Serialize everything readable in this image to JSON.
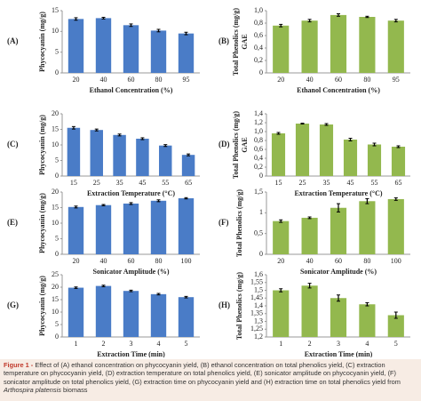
{
  "chart_data": [
    {
      "type": "bar",
      "panel": "(A)",
      "ylabel": "Phycocyanin (mg/g)",
      "xlabel": "Ethanol Concentration (%)",
      "categories": [
        "20",
        "40",
        "60",
        "80",
        "95"
      ],
      "values": [
        13.0,
        13.2,
        11.5,
        10.2,
        9.5
      ],
      "errors": [
        0.3,
        0.2,
        0.3,
        0.3,
        0.3
      ],
      "color": "#4a7cc7",
      "ylim": [
        0,
        15
      ],
      "yticks": [
        0,
        5,
        10,
        15
      ]
    },
    {
      "type": "bar",
      "panel": "(B)",
      "ylabel": "Total Phenolics (mg/g)",
      "ylabel2": "GAE",
      "xlabel": "Ethanol Concentration (%)",
      "categories": [
        "20",
        "40",
        "60",
        "80",
        "95"
      ],
      "values": [
        0.76,
        0.84,
        0.93,
        0.9,
        0.84
      ],
      "errors": [
        0.02,
        0.02,
        0.02,
        0.01,
        0.02
      ],
      "color": "#93b84e",
      "ylim": [
        0,
        1.0
      ],
      "yticks": [
        0,
        {
          "value": 0.2,
          "label": "0,2"
        },
        {
          "value": 0.4,
          "label": "0,4"
        },
        {
          "value": 0.6,
          "label": "0,6"
        },
        {
          "value": 0.8,
          "label": "0,8"
        },
        {
          "value": 1.0,
          "label": "1,0"
        }
      ]
    },
    {
      "type": "bar",
      "panel": "(C)",
      "ylabel": "Phycocyanin (mg/g)",
      "xlabel": "Extraction Temperature (°C)",
      "categories": [
        "15",
        "25",
        "35",
        "45",
        "55",
        "65"
      ],
      "values": [
        15.5,
        14.8,
        13.2,
        12.0,
        9.8,
        6.8
      ],
      "errors": [
        0.4,
        0.3,
        0.3,
        0.3,
        0.3,
        0.3
      ],
      "color": "#4a7cc7",
      "ylim": [
        0,
        20
      ],
      "yticks": [
        0,
        5,
        10,
        15,
        20
      ]
    },
    {
      "type": "bar",
      "panel": "(D)",
      "ylabel": "Total Phenolics (mg/g)",
      "ylabel2": "GAE",
      "xlabel": "Extraction Temperature (°C)",
      "categories": [
        "15",
        "25",
        "35",
        "45",
        "55",
        "65"
      ],
      "values": [
        0.96,
        1.18,
        1.16,
        0.82,
        0.71,
        0.66
      ],
      "errors": [
        0.02,
        0.01,
        0.02,
        0.03,
        0.03,
        0.02
      ],
      "color": "#93b84e",
      "ylim": [
        0,
        1.4
      ],
      "yticks": [
        0,
        {
          "value": 0.2,
          "label": "0,2"
        },
        {
          "value": 0.4,
          "label": "0,4"
        },
        {
          "value": 0.6,
          "label": "0,6"
        },
        {
          "value": 0.8,
          "label": "0,8"
        },
        {
          "value": 1.0,
          "label": "1,0"
        },
        {
          "value": 1.2,
          "label": "1,2"
        },
        {
          "value": 1.4,
          "label": "1,4"
        }
      ]
    },
    {
      "type": "bar",
      "panel": "(E)",
      "ylabel": "Phycocyanin (mg/g)",
      "xlabel": "Sonicator Amplitude (%)",
      "categories": [
        "20",
        "40",
        "60",
        "80",
        "100"
      ],
      "values": [
        15.2,
        15.8,
        16.3,
        17.2,
        18.0
      ],
      "errors": [
        0.3,
        0.2,
        0.3,
        0.3,
        0.2
      ],
      "color": "#4a7cc7",
      "ylim": [
        0,
        20
      ],
      "yticks": [
        0,
        5,
        10,
        15,
        20
      ]
    },
    {
      "type": "bar",
      "panel": "(F)",
      "ylabel": "Total Phenolics (mg/g)",
      "xlabel": "Sonicator Amplitude (%)",
      "categories": [
        "20",
        "40",
        "60",
        "80",
        "100"
      ],
      "values": [
        0.8,
        0.88,
        1.12,
        1.28,
        1.33
      ],
      "errors": [
        0.03,
        0.02,
        0.1,
        0.06,
        0.03
      ],
      "color": "#93b84e",
      "ylim": [
        0,
        1.5
      ],
      "yticks": [
        0,
        {
          "value": 0.5,
          "label": "0,5"
        },
        1,
        {
          "value": 1.5,
          "label": "1,5"
        }
      ]
    },
    {
      "type": "bar",
      "panel": "(G)",
      "ylabel": "Phycocyanin (mg/g)",
      "xlabel": "Extraction Time (min)",
      "categories": [
        "1",
        "2",
        "3",
        "4",
        "5"
      ],
      "values": [
        19.8,
        20.5,
        18.5,
        17.2,
        16.0
      ],
      "errors": [
        0.3,
        0.3,
        0.3,
        0.3,
        0.3
      ],
      "color": "#4a7cc7",
      "ylim": [
        0,
        25
      ],
      "yticks": [
        0,
        5,
        10,
        15,
        20,
        25
      ]
    },
    {
      "type": "bar",
      "panel": "(H)",
      "ylabel": "Total Phenolics (mg/g)",
      "xlabel": "Extraction Time (min)",
      "categories": [
        "1",
        "2",
        "3",
        "4",
        "5"
      ],
      "values": [
        1.5,
        1.53,
        1.45,
        1.41,
        1.34
      ],
      "errors": [
        0.01,
        0.015,
        0.02,
        0.01,
        0.02
      ],
      "color": "#93b84e",
      "ylim": [
        1.2,
        1.6
      ],
      "yticks": [
        {
          "value": 1.2,
          "label": "1,2"
        },
        {
          "value": 1.25,
          "label": "1,25"
        },
        {
          "value": 1.3,
          "label": "1,3"
        },
        {
          "value": 1.35,
          "label": "1,35"
        },
        {
          "value": 1.4,
          "label": "1,4"
        },
        {
          "value": 1.45,
          "label": "1,45"
        },
        {
          "value": 1.5,
          "label": "1,5"
        },
        {
          "value": 1.55,
          "label": "1,55"
        },
        {
          "value": 1.6,
          "label": "1,6"
        }
      ]
    }
  ],
  "caption": {
    "label": "Figure 1 -",
    "text": "Effect of (A) ethanol concentration on phycocyanin yield, (B) ethanol concentration on total phenolics yield, (C) extraction temperature on phycocyanin yield, (D) extraction temperature on total phenolics yield, (E) sonicator amplitude on phycocyanin yield, (F) sonicator amplitude on total phenolics yield, (G) extraction time on phycocyanin yield and (H) extraction time on total phenolics yield from",
    "species": "Arthospira platensis",
    "end": "biomass"
  }
}
